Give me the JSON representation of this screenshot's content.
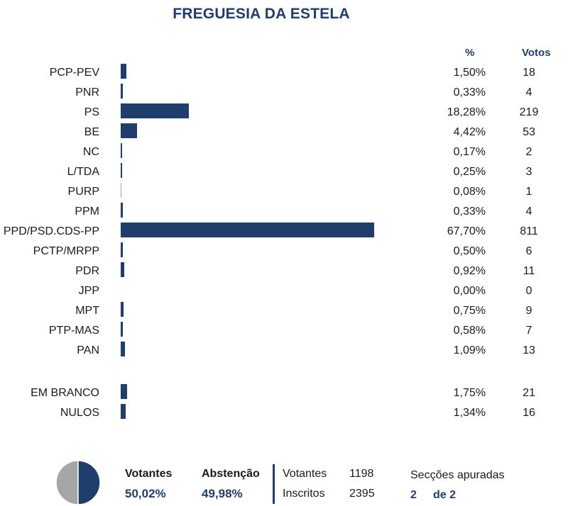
{
  "title": "FREGUESIA DA ESTELA",
  "headers": {
    "pct": "%",
    "votos": "Votos"
  },
  "chart_data": {
    "type": "bar",
    "orientation": "horizontal",
    "title": "FREGUESIA DA ESTELA",
    "bar_color": "#1f3e6b",
    "xlim": [
      0,
      100
    ],
    "rows": [
      {
        "label": "PCP-PEV",
        "pct": "1,50%",
        "value": 1.5,
        "votos": "18"
      },
      {
        "label": "PNR",
        "pct": "0,33%",
        "value": 0.33,
        "votos": "4"
      },
      {
        "label": "PS",
        "pct": "18,28%",
        "value": 18.28,
        "votos": "219"
      },
      {
        "label": "BE",
        "pct": "4,42%",
        "value": 4.42,
        "votos": "53"
      },
      {
        "label": "NC",
        "pct": "0,17%",
        "value": 0.17,
        "votos": "2"
      },
      {
        "label": "L/TDA",
        "pct": "0,25%",
        "value": 0.25,
        "votos": "3"
      },
      {
        "label": "PURP",
        "pct": "0,08%",
        "value": 0.08,
        "votos": "1"
      },
      {
        "label": "PPM",
        "pct": "0,33%",
        "value": 0.33,
        "votos": "4"
      },
      {
        "label": "PPD/PSD.CDS-PP",
        "pct": "67,70%",
        "value": 67.7,
        "votos": "811"
      },
      {
        "label": "PCTP/MRPP",
        "pct": "0,50%",
        "value": 0.5,
        "votos": "6"
      },
      {
        "label": "PDR",
        "pct": "0,92%",
        "value": 0.92,
        "votos": "11"
      },
      {
        "label": "JPP",
        "pct": "0,00%",
        "value": 0.0,
        "votos": "0"
      },
      {
        "label": "MPT",
        "pct": "0,75%",
        "value": 0.75,
        "votos": "9"
      },
      {
        "label": "PTP-MAS",
        "pct": "0,58%",
        "value": 0.58,
        "votos": "7"
      },
      {
        "label": "PAN",
        "pct": "1,09%",
        "value": 1.09,
        "votos": "13"
      },
      {
        "label": "EM BRANCO",
        "pct": "1,75%",
        "value": 1.75,
        "votos": "21"
      },
      {
        "label": "NULOS",
        "pct": "1,34%",
        "value": 1.34,
        "votos": "16"
      }
    ]
  },
  "summary": {
    "votantes_label": "Votantes",
    "votantes_pct": "50,02%",
    "abstencao_label": "Abstenção",
    "abstencao_pct": "49,98%",
    "pie": {
      "votantes_fraction": 0.5002,
      "votantes_color": "#1f3e6b",
      "abstencao_color": "#a6a6a6"
    },
    "votantes_count_label": "Votantes",
    "votantes_count": "1198",
    "inscritos_label": "Inscritos",
    "inscritos_count": "2395",
    "seccoes_label": "Secções apuradas",
    "seccoes_done": "2",
    "seccoes_total": "de 2"
  }
}
